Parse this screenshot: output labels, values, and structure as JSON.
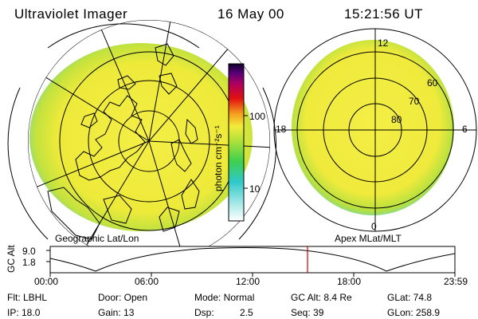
{
  "header": {
    "instrument": "Ultraviolet Imager",
    "date": "16 May 00",
    "time": "15:21:56 UT"
  },
  "colorbar": {
    "unit_label": "photon cm⁻²s⁻¹",
    "ticks": [
      "100",
      "10"
    ]
  },
  "geo_map": {
    "caption": "Geographic Lat/Lon"
  },
  "polar_map": {
    "caption": "Apex  MLat/MLT",
    "mlt_labels": {
      "top": "12",
      "left": "18",
      "right": "6",
      "bottom": "0"
    },
    "lat_labels": [
      "60",
      "70",
      "80"
    ]
  },
  "altitude_plot": {
    "ylabel": "GC Alt",
    "yticks": [
      "9.0",
      "1.8"
    ],
    "xticks": [
      "00:00",
      "06:00",
      "12:00",
      "18:00",
      "23:59"
    ],
    "marker_time": "15:21:56"
  },
  "info": {
    "flt": "Flt: LBHL",
    "ip": "IP: 18.0",
    "door": "Door: Open",
    "gain": "Gain: 13",
    "mode": "Mode: Normal",
    "dsp_label": "Dsp:",
    "dsp_value": "2.5",
    "gc_alt": "GC Alt: 8.4 Re",
    "seq": "Seq: 39",
    "glat": "GLat:  74.8",
    "glon": "GLon: 258.9"
  },
  "colors": {
    "emission_main": "#f2ec3c",
    "emission_green": "#9fdc3f",
    "emission_cyan": "#4fd8cc",
    "marker": "#cc0000"
  }
}
